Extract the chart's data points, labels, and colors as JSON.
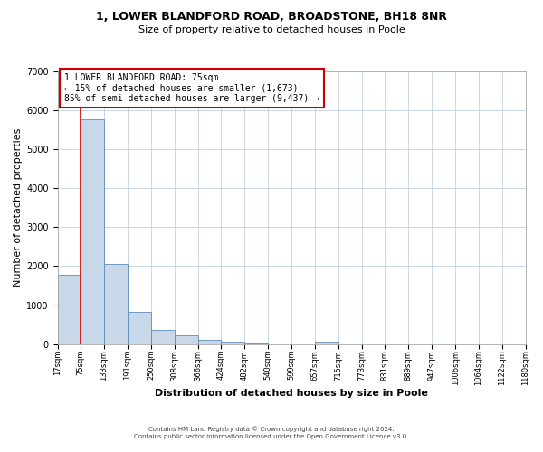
{
  "title_line1": "1, LOWER BLANDFORD ROAD, BROADSTONE, BH18 8NR",
  "title_line2": "Size of property relative to detached houses in Poole",
  "xlabel": "Distribution of detached houses by size in Poole",
  "ylabel": "Number of detached properties",
  "bar_edges": [
    17,
    75,
    133,
    191,
    250,
    308,
    366,
    424,
    482,
    540,
    599,
    657,
    715,
    773,
    831,
    889,
    947,
    1006,
    1064,
    1122,
    1180
  ],
  "bar_heights": [
    1780,
    5760,
    2050,
    820,
    370,
    215,
    100,
    55,
    30,
    0,
    0,
    50,
    0,
    0,
    0,
    0,
    0,
    0,
    0,
    0
  ],
  "tick_labels": [
    "17sqm",
    "75sqm",
    "133sqm",
    "191sqm",
    "250sqm",
    "308sqm",
    "366sqm",
    "424sqm",
    "482sqm",
    "540sqm",
    "599sqm",
    "657sqm",
    "715sqm",
    "773sqm",
    "831sqm",
    "889sqm",
    "947sqm",
    "1006sqm",
    "1064sqm",
    "1122sqm",
    "1180sqm"
  ],
  "bar_color": "#c8d8e8",
  "bar_edge_color": "#5b8db8",
  "vline_x": 75,
  "vline_color": "#cc0000",
  "annotation_line1": "1 LOWER BLANDFORD ROAD: 75sqm",
  "annotation_line2": "← 15% of detached houses are smaller (1,673)",
  "annotation_line3": "85% of semi-detached houses are larger (9,437) →",
  "annotation_box_color": "#cc0000",
  "ylim": [
    0,
    7000
  ],
  "yticks": [
    0,
    1000,
    2000,
    3000,
    4000,
    5000,
    6000,
    7000
  ],
  "footer_line1": "Contains HM Land Registry data © Crown copyright and database right 2024.",
  "footer_line2": "Contains public sector information licensed under the Open Government Licence v3.0.",
  "background_color": "#ffffff",
  "grid_color": "#c0d0e0",
  "title_fontsize": 9,
  "subtitle_fontsize": 8,
  "xlabel_fontsize": 8,
  "ylabel_fontsize": 8,
  "tick_fontsize": 6,
  "ytick_fontsize": 7,
  "annotation_fontsize": 7,
  "footer_fontsize": 5
}
